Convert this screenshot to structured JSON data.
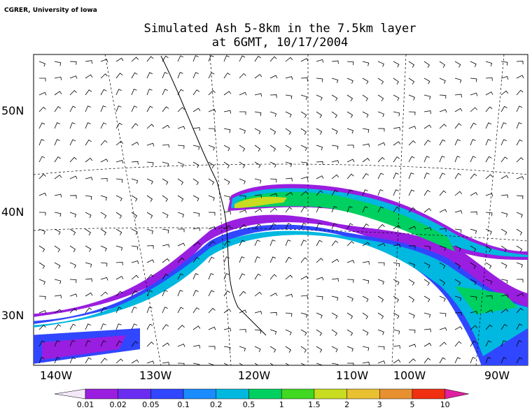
{
  "header": {
    "credit": "CGRER, University of Iowa",
    "title_line1": "Simulated Ash 5-8km in the 7.5km layer",
    "title_line2": "at 6GMT, 10/17/2004"
  },
  "map": {
    "lat_labels": [
      "50N",
      "40N",
      "30N"
    ],
    "lon_labels": [
      "140W",
      "130W",
      "120W",
      "110W",
      "100W",
      "90W"
    ]
  },
  "colorbar": {
    "labels": [
      "0.01",
      "0.02",
      "0.05",
      "0.1",
      "0.2",
      "0.5",
      "1",
      "1.5",
      "2",
      "3",
      "5",
      "10"
    ],
    "colors": [
      "#f4e8f8",
      "#9a1ee0",
      "#6a2cf0",
      "#3046ff",
      "#1a8cff",
      "#00b8e0",
      "#00d060",
      "#40d820",
      "#c8dc20",
      "#e8c030",
      "#e89030",
      "#f03010",
      "#e020a0"
    ]
  }
}
